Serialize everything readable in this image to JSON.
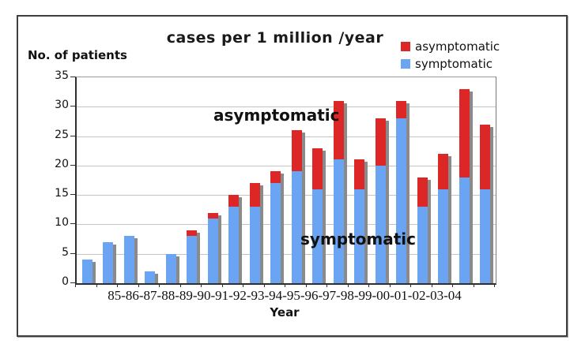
{
  "chart_data": {
    "type": "bar",
    "stacked": true,
    "title": "cases per 1 million /year",
    "ylabel": "No. of patients",
    "xlabel": "Year",
    "x_axis_display": "85-86-87-88-89-90-91-92-93-94-95-96-97-98-99-00-01-02-03-04",
    "categories": [
      "85",
      "86",
      "87",
      "88",
      "89",
      "90",
      "91",
      "92",
      "93",
      "94",
      "95",
      "96",
      "97",
      "98",
      "99",
      "00",
      "01",
      "02",
      "03",
      "04"
    ],
    "series": [
      {
        "name": "symptomatic",
        "color": "#6BA4F2",
        "values": [
          4,
          7,
          8,
          2,
          5,
          8,
          11,
          13,
          13,
          17,
          19,
          16,
          21,
          16,
          20,
          28,
          13,
          16,
          18,
          16
        ]
      },
      {
        "name": "asymptomatic",
        "color": "#DD2727",
        "values": [
          0,
          0,
          0,
          0,
          0,
          1,
          1,
          2,
          4,
          2,
          7,
          7,
          10,
          5,
          8,
          3,
          5,
          6,
          15,
          11
        ]
      }
    ],
    "totals": [
      4,
      7,
      8,
      2,
      5,
      9,
      12,
      15,
      17,
      19,
      26,
      23,
      31,
      21,
      28,
      31,
      18,
      22,
      33,
      27
    ],
    "ylim": [
      0,
      35
    ],
    "ytick_step": 5,
    "yticks": [
      0,
      5,
      10,
      15,
      20,
      25,
      30,
      35
    ],
    "grid": true,
    "legend_position": "top-right",
    "legend_order": [
      "asymptomatic",
      "symptomatic"
    ],
    "shadow_color": "#8A8A8A",
    "annotations": [
      {
        "text": "asymptomatic"
      },
      {
        "text": "symptomatic"
      }
    ]
  }
}
